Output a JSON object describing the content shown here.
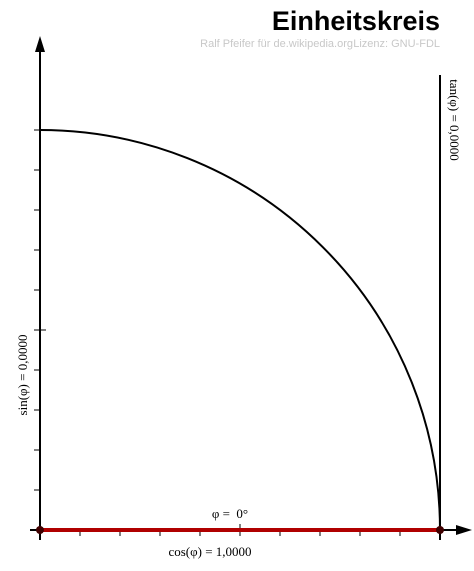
{
  "header": {
    "title": "Einheitskreis",
    "credit": "Ralf Pfeifer für de.wikipedia.org",
    "license": "Lizenz: GNU-FDL"
  },
  "labels": {
    "sin": "sin(φ) = 0,0000",
    "cos": "cos(φ) = 1,0000",
    "tan": "tan(φ) = 0,0000",
    "phi": "φ =  0°"
  }
}
